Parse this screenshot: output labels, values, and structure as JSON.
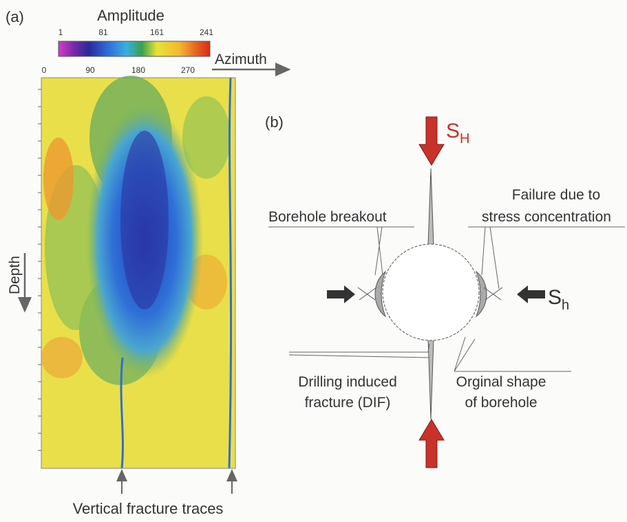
{
  "panel_a": {
    "label": "(a)",
    "colorbar": {
      "title": "Amplitude",
      "ticks": [
        "1",
        "81",
        "161",
        "241"
      ]
    },
    "azimuth": {
      "title": "Azimuth",
      "ticks": [
        "0",
        "90",
        "180",
        "270"
      ]
    },
    "depth": "Depth",
    "caption": "Vertical fracture traces"
  },
  "panel_b": {
    "label": "(b)",
    "s_max": {
      "symbol": "S",
      "subscript": "H"
    },
    "s_min": {
      "symbol": "S",
      "subscript": "h"
    },
    "annotations": {
      "breakout": "Borehole breakout",
      "failure": [
        "Failure due to",
        "stress concentration"
      ],
      "dif": [
        "Drilling induced",
        "fracture (DIF)"
      ],
      "original": [
        "Orginal shape",
        "of borehole"
      ]
    }
  }
}
